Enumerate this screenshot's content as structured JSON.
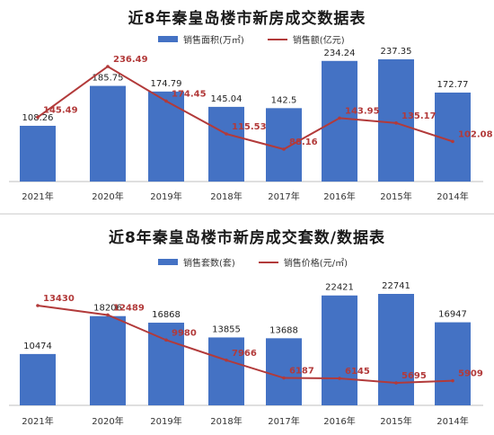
{
  "chart_data": [
    {
      "type": "bar",
      "title": "近8年秦皇岛楼市新房成交数据表",
      "categories": [
        "2021年",
        "2020年",
        "2019年",
        "2018年",
        "2017年",
        "2016年",
        "2015年",
        "2014年"
      ],
      "series": [
        {
          "name": "销售面积(万㎡)",
          "type": "bar",
          "values": [
            108.26,
            185.75,
            174.79,
            145.04,
            142.5,
            234.24,
            237.35,
            172.77
          ]
        },
        {
          "name": "销售额(亿元)",
          "type": "line",
          "values": [
            145.49,
            236.49,
            174.45,
            115.53,
            88.16,
            143.95,
            135.17,
            102.08
          ]
        }
      ],
      "value_labels": {
        "bar": [
          "108.26",
          "185.75",
          "174.79",
          "145.04",
          "142.5",
          "234.24",
          "237.35",
          "172.77"
        ],
        "line": [
          "145.49",
          "236.49",
          "174.45",
          "115.53",
          "88.16",
          "143.95",
          "135.17",
          "102.08"
        ]
      },
      "bar_color": "#4472c4",
      "line_color": "#b23a3a",
      "legend_position": "top",
      "grid": false
    },
    {
      "type": "bar",
      "title": "近8年秦皇岛楼市新房成交套数/数据表",
      "categories": [
        "2021年",
        "2020年",
        "2019年",
        "2018年",
        "2017年",
        "2016年",
        "2015年",
        "2014年"
      ],
      "series": [
        {
          "name": "销售套数(套)",
          "type": "bar",
          "values": [
            10474,
            18206,
            16868,
            13855,
            13688,
            22421,
            22741,
            16947
          ]
        },
        {
          "name": "销售价格(元/㎡)",
          "type": "line",
          "values": [
            13430,
            12489,
            9980,
            7966,
            6187,
            6145,
            5695,
            5909
          ]
        }
      ],
      "value_labels": {
        "bar": [
          "10474",
          "18206",
          "16868",
          "13855",
          "13688",
          "22421",
          "22741",
          "16947"
        ],
        "line": [
          "13430",
          "12489",
          "9980",
          "7966",
          "6187",
          "6145",
          "5695",
          "5909"
        ]
      },
      "bar_color": "#4472c4",
      "line_color": "#b23a3a",
      "legend_position": "top",
      "grid": false
    }
  ]
}
